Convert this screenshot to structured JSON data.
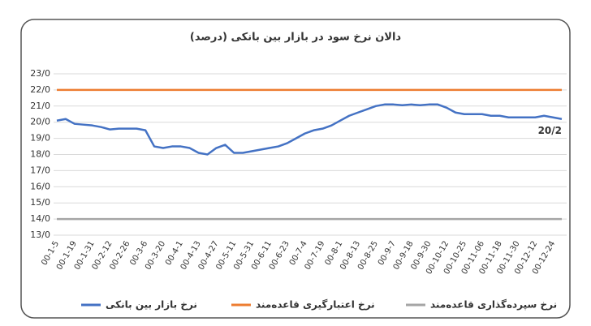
{
  "chart_data": {
    "type": "line",
    "title": "دالان نرخ سود در بازار بین بانکی (درصد)",
    "categories": [
      "00-1-5",
      null,
      "00-1-19",
      null,
      "00-1-31",
      null,
      "00-2-12",
      null,
      "00-2-26",
      null,
      "00-3-6",
      null,
      "00-3-20",
      null,
      "00-4-1",
      null,
      "00-4-13",
      null,
      "00-4-27",
      null,
      "00-5-11",
      null,
      "00-5-31",
      null,
      "00-6-11",
      null,
      "00-6-23",
      null,
      "00-7-4",
      null,
      "00-7-19",
      null,
      "00-8-1",
      null,
      "00-8-13",
      null,
      "00-8-25",
      null,
      "00-9-7",
      null,
      "00-9-18",
      null,
      "00-9-30",
      null,
      "00-10-12",
      null,
      "00-10-25",
      null,
      "00-11-06",
      null,
      "00-11-18",
      null,
      "00-11-30",
      null,
      "00-12-12",
      null,
      "00-12-24",
      null
    ],
    "series": [
      {
        "name": "نرخ بازار بین بانکی",
        "color": "#4472c4",
        "values": [
          20.1,
          20.2,
          19.9,
          19.85,
          19.8,
          19.7,
          19.55,
          19.6,
          19.6,
          19.6,
          19.5,
          18.5,
          18.4,
          18.5,
          18.5,
          18.4,
          18.1,
          18.0,
          18.4,
          18.6,
          18.1,
          18.1,
          18.2,
          18.3,
          18.4,
          18.5,
          18.7,
          19.0,
          19.3,
          19.5,
          19.6,
          19.8,
          20.1,
          20.4,
          20.6,
          20.8,
          21.0,
          21.1,
          21.1,
          21.05,
          21.1,
          21.05,
          21.1,
          21.1,
          20.9,
          20.6,
          20.5,
          20.5,
          20.5,
          20.4,
          20.4,
          20.3,
          20.3,
          20.3,
          20.3,
          20.4,
          20.3,
          20.2
        ],
        "value_labels": [
          null,
          null,
          null,
          null,
          null,
          null,
          null,
          null,
          null,
          null,
          null,
          null,
          null,
          null,
          null,
          null,
          null,
          null,
          null,
          null,
          null,
          null,
          null,
          null,
          null,
          null,
          null,
          null,
          null,
          null,
          null,
          null,
          null,
          null,
          null,
          null,
          null,
          null,
          null,
          null,
          null,
          null,
          null,
          null,
          null,
          null,
          null,
          null,
          null,
          null,
          null,
          null,
          null,
          null,
          null,
          null,
          null,
          "20/2"
        ]
      },
      {
        "name": "نرخ اعتبارگیری قاعده‌مند",
        "color": "#ed7d31",
        "values": [
          22,
          22,
          22,
          22,
          22,
          22,
          22,
          22,
          22,
          22,
          22,
          22,
          22,
          22,
          22,
          22,
          22,
          22,
          22,
          22,
          22,
          22,
          22,
          22,
          22,
          22,
          22,
          22,
          22,
          22,
          22,
          22,
          22,
          22,
          22,
          22,
          22,
          22,
          22,
          22,
          22,
          22,
          22,
          22,
          22,
          22,
          22,
          22,
          22,
          22,
          22,
          22,
          22,
          22,
          22,
          22,
          22,
          22
        ]
      },
      {
        "name": "نرخ سپرده‌گذاری قاعده‌مند",
        "color": "#a5a5a5",
        "values": [
          14,
          14,
          14,
          14,
          14,
          14,
          14,
          14,
          14,
          14,
          14,
          14,
          14,
          14,
          14,
          14,
          14,
          14,
          14,
          14,
          14,
          14,
          14,
          14,
          14,
          14,
          14,
          14,
          14,
          14,
          14,
          14,
          14,
          14,
          14,
          14,
          14,
          14,
          14,
          14,
          14,
          14,
          14,
          14,
          14,
          14,
          14,
          14,
          14,
          14,
          14,
          14,
          14,
          14,
          14,
          14,
          14,
          14
        ]
      }
    ],
    "ylim": [
      13,
      23
    ],
    "yticks": [
      {
        "value": 13,
        "label": "13/0"
      },
      {
        "value": 14,
        "label": "14/0"
      },
      {
        "value": 15,
        "label": "15/0"
      },
      {
        "value": 16,
        "label": "16/0"
      },
      {
        "value": 17,
        "label": "17/0"
      },
      {
        "value": 18,
        "label": "18/0"
      },
      {
        "value": 19,
        "label": "19/0"
      },
      {
        "value": 20,
        "label": "20/0"
      },
      {
        "value": 21,
        "label": "21/0"
      },
      {
        "value": 22,
        "label": "22/0"
      },
      {
        "value": 23,
        "label": "23/0"
      }
    ],
    "grid": true,
    "legend": "bottom"
  }
}
